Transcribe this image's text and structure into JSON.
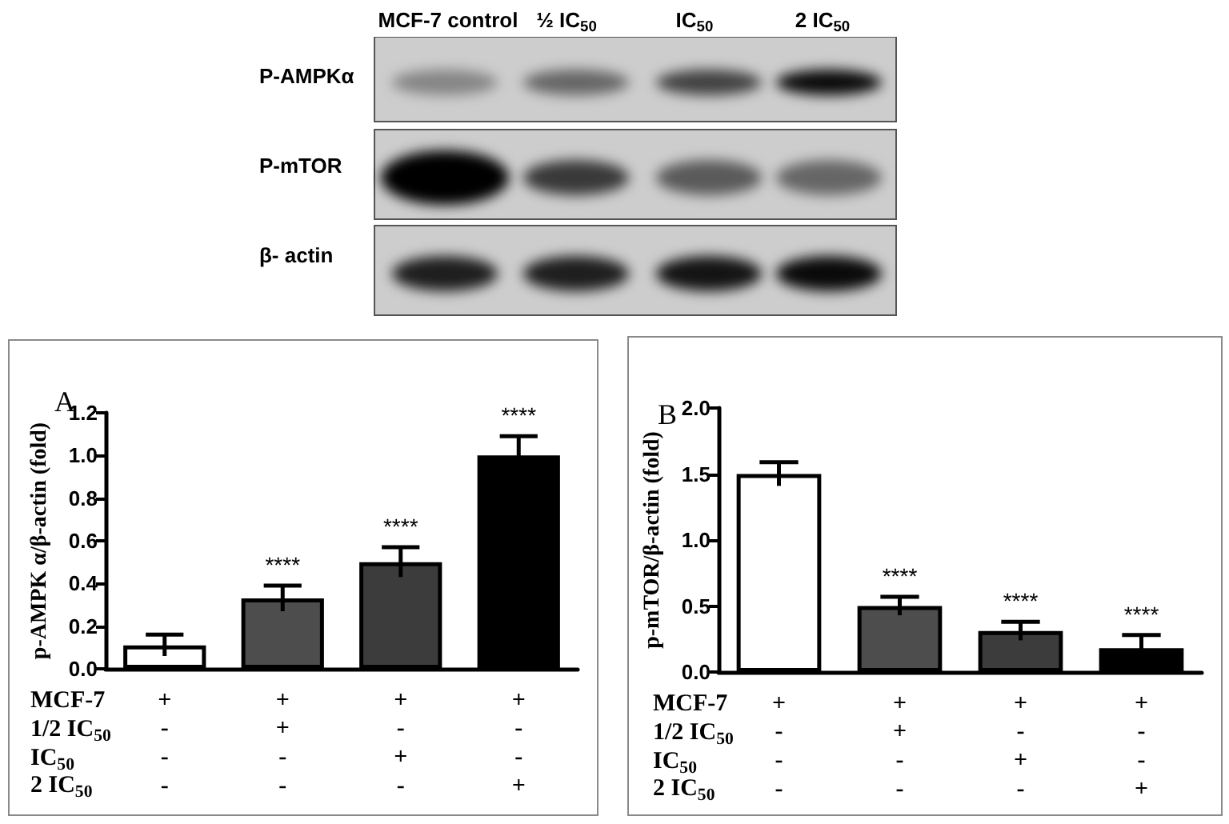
{
  "chart_data": [
    {
      "type": "other",
      "categories": [
        "MCF-7 control",
        "½ IC$_{50}$",
        "IC$_{50}$",
        "2 IC$_{50}$"
      ],
      "y_categories": [
        "P-AMPKα",
        "P-mTOR",
        "β- actin"
      ]
    },
    {
      "type": "bar",
      "title": "A",
      "ylabel": "p-AMPK α/β-actin (fold)",
      "categories": [
        "+\n-\n-\n-",
        "+\n+\n-\n-",
        "+\n-\n+\n-",
        "+\n-\n-\n+"
      ],
      "values": [
        0.11,
        0.33,
        0.5,
        1.0
      ],
      "colors": [
        "#ffffff",
        "#4d4d4d",
        "#3c3c3c",
        "#000000"
      ],
      "errors": [
        0.05,
        0.06,
        0.07,
        0.09
      ],
      "value_labels": [
        null,
        "****",
        "****",
        "****"
      ],
      "annotations": [
        "MCF-7",
        "1/2 IC$_{50}$",
        "IC$_{50}$",
        "2 IC$_{50}$"
      ],
      "ylim": [
        0,
        1.2
      ],
      "yticks": [
        {
          "value": 0,
          "label": "0.0"
        },
        0.2,
        0.4,
        0.6,
        0.8,
        {
          "value": 1,
          "label": "1.0"
        },
        1.2
      ]
    },
    {
      "type": "bar",
      "title": "B",
      "ylabel": "p-mTOR/β-actin (fold)",
      "categories": [
        "+\n-\n-\n-",
        "+\n+\n-\n-",
        "+\n-\n+\n-",
        "+\n-\n-\n+"
      ],
      "values": [
        1.5,
        0.5,
        0.31,
        0.18
      ],
      "colors": [
        "#ffffff",
        "#4d4d4d",
        "#3c3c3c",
        "#000000"
      ],
      "errors": [
        0.09,
        0.07,
        0.07,
        0.1
      ],
      "value_labels": [
        null,
        "****",
        "****",
        "****"
      ],
      "annotations": [
        "MCF-7",
        "1/2 IC$_{50}$",
        "IC$_{50}$",
        "2 IC$_{50}$"
      ],
      "ylim": [
        0,
        2
      ],
      "yticks": [
        {
          "value": 0,
          "label": "0.0"
        },
        0.5,
        {
          "value": 1,
          "label": "1.0"
        },
        1.5,
        {
          "value": 2,
          "label": "2.0"
        }
      ]
    }
  ]
}
